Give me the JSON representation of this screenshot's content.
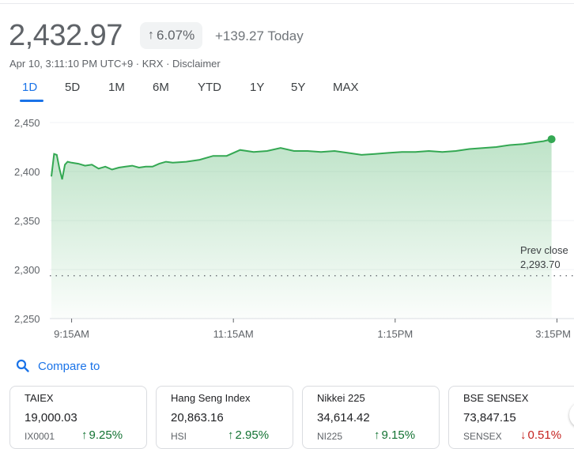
{
  "quote": {
    "price": "2,432.97",
    "change_pct": "6.07%",
    "change_pct_arrow": "↑",
    "change_abs": "+139.27 Today",
    "meta": "Apr 10, 3:11:10 PM UTC+9 · KRX · Disclaimer"
  },
  "tabs": [
    "1D",
    "5D",
    "1M",
    "6M",
    "YTD",
    "1Y",
    "5Y",
    "MAX"
  ],
  "active_tab": "1D",
  "prev_close": {
    "label": "Prev close",
    "value": "2,293.70"
  },
  "colors": {
    "line": "#34a853",
    "fill": "#34a853",
    "accent": "#1a73e8",
    "up": "#137333",
    "down": "#c5221f"
  },
  "compare": {
    "label": "Compare to",
    "icon": "search-icon"
  },
  "cards": [
    {
      "name": "TAIEX",
      "value": "19,000.03",
      "ticker": "IX0001",
      "arrow": "↑",
      "change": "9.25%",
      "dir": "up"
    },
    {
      "name": "Hang Seng Index",
      "value": "20,863.16",
      "ticker": "HSI",
      "arrow": "↑",
      "change": "2.95%",
      "dir": "up"
    },
    {
      "name": "Nikkei 225",
      "value": "34,614.42",
      "ticker": "NI225",
      "arrow": "↑",
      "change": "9.15%",
      "dir": "up"
    },
    {
      "name": "BSE SENSEX",
      "value": "73,847.15",
      "ticker": "SENSEX",
      "arrow": "↓",
      "change": "0.51%",
      "dir": "down"
    }
  ],
  "chart_data": {
    "type": "area",
    "title": "",
    "xlabel": "",
    "ylabel": "",
    "ylim": [
      2250,
      2450
    ],
    "yticks": [
      2250,
      2300,
      2350,
      2400,
      2450
    ],
    "ytick_labels": [
      "2,250",
      "2,300",
      "2,350",
      "2,400",
      "2,450"
    ],
    "xticks": [
      "9:15AM",
      "11:15AM",
      "1:15PM",
      "3:15PM"
    ],
    "baseline": 2293.7,
    "series": [
      {
        "x": [
          "9:00",
          "9:02",
          "9:04",
          "9:06",
          "9:08",
          "9:10",
          "9:12",
          "9:15",
          "9:20",
          "9:25",
          "9:30",
          "9:35",
          "9:40",
          "9:45",
          "9:50",
          "9:55",
          "10:00",
          "10:05",
          "10:10",
          "10:15",
          "10:20",
          "10:25",
          "10:30",
          "10:40",
          "10:50",
          "11:00",
          "11:10",
          "11:20",
          "11:30",
          "11:40",
          "11:50",
          "12:00",
          "12:10",
          "12:20",
          "12:30",
          "12:40",
          "12:50",
          "13:00",
          "13:10",
          "13:20",
          "13:30",
          "13:40",
          "13:50",
          "14:00",
          "14:10",
          "14:20",
          "14:30",
          "14:40",
          "14:50",
          "15:00",
          "15:05",
          "15:11"
        ],
        "values": [
          2395,
          2418,
          2417,
          2403,
          2392,
          2407,
          2410,
          2409,
          2408,
          2406,
          2407,
          2403,
          2405,
          2402,
          2404,
          2405,
          2406,
          2404,
          2405,
          2405,
          2408,
          2410,
          2409,
          2410,
          2412,
          2416,
          2416,
          2422,
          2420,
          2421,
          2424,
          2421,
          2421,
          2420,
          2421,
          2419,
          2417,
          2418,
          2419,
          2420,
          2420,
          2421,
          2420,
          2421,
          2423,
          2424,
          2425,
          2427,
          2428,
          2430,
          2431,
          2433
        ]
      }
    ]
  }
}
